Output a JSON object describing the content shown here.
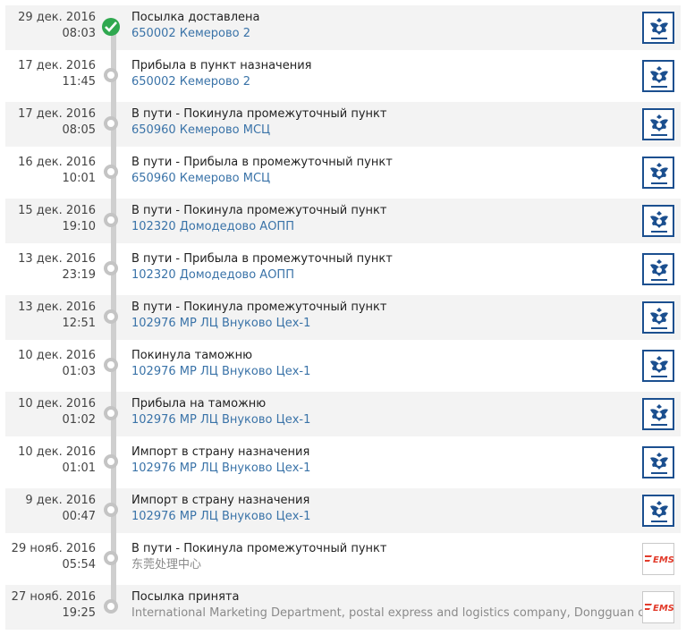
{
  "colors": {
    "accent_link": "#3a73a8",
    "delivered_green": "#2fa84f",
    "post_logo_blue": "#1b4f8f",
    "ems_red": "#e23b2b"
  },
  "events": [
    {
      "date": "29 дек. 2016",
      "time": "08:03",
      "status": "Посылка доставлена",
      "location": "650002 Кемерово 2",
      "logo": "russian-post-icon",
      "delivered": true
    },
    {
      "date": "17 дек. 2016",
      "time": "11:45",
      "status": "Прибыла в пункт назначения",
      "location": "650002 Кемерово 2",
      "logo": "russian-post-icon"
    },
    {
      "date": "17 дек. 2016",
      "time": "08:05",
      "status": "В пути - Покинула промежуточный пункт",
      "location": "650960 Кемерово МСЦ",
      "logo": "russian-post-icon"
    },
    {
      "date": "16 дек. 2016",
      "time": "10:01",
      "status": "В пути - Прибыла в промежуточный пункт",
      "location": "650960 Кемерово МСЦ",
      "logo": "russian-post-icon"
    },
    {
      "date": "15 дек. 2016",
      "time": "19:10",
      "status": "В пути - Покинула промежуточный пункт",
      "location": "102320 Домодедово АОПП",
      "logo": "russian-post-icon"
    },
    {
      "date": "13 дек. 2016",
      "time": "23:19",
      "status": "В пути - Прибыла в промежуточный пункт",
      "location": "102320 Домодедово АОПП",
      "logo": "russian-post-icon"
    },
    {
      "date": "13 дек. 2016",
      "time": "12:51",
      "status": "В пути - Покинула промежуточный пункт",
      "location": "102976 МР ЛЦ Внуково Цех-1",
      "logo": "russian-post-icon"
    },
    {
      "date": "10 дек. 2016",
      "time": "01:03",
      "status": "Покинула таможню",
      "location": "102976 МР ЛЦ Внуково Цех-1",
      "logo": "russian-post-icon"
    },
    {
      "date": "10 дек. 2016",
      "time": "01:02",
      "status": "Прибыла на таможню",
      "location": "102976 МР ЛЦ Внуково Цех-1",
      "logo": "russian-post-icon"
    },
    {
      "date": "10 дек. 2016",
      "time": "01:01",
      "status": "Импорт в страну назначения",
      "location": "102976 МР ЛЦ Внуково Цех-1",
      "logo": "russian-post-icon"
    },
    {
      "date": "9 дек. 2016",
      "time": "00:47",
      "status": "Импорт в страну назначения",
      "location": "102976 МР ЛЦ Внуково Цех-1",
      "logo": "russian-post-icon"
    },
    {
      "date": "29 нояб. 2016",
      "time": "05:54",
      "status": "В пути - Покинула промежуточный пункт",
      "location": "东莞处理中心",
      "logo": "ems-icon",
      "location_style": "grey"
    },
    {
      "date": "27 нояб. 2016",
      "time": "19:25",
      "status": "Посылка принята",
      "location": "International Marketing Department, postal express and logistics company, Dongguan city",
      "logo": "ems-icon",
      "location_style": "grey"
    }
  ]
}
